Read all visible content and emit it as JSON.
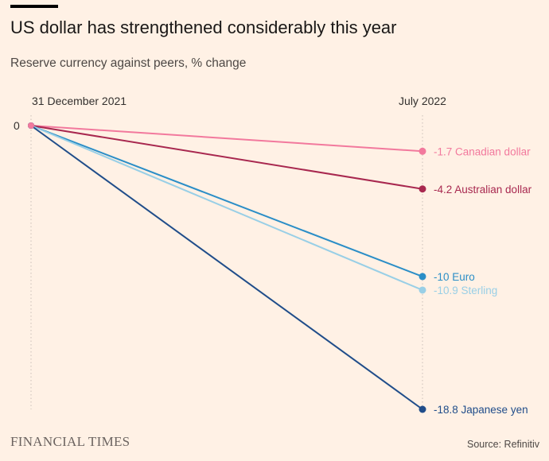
{
  "header": {
    "title": "US dollar has strengthened considerably this year",
    "subtitle": "Reserve currency against peers, % change"
  },
  "footer": {
    "brand": "FINANCIAL TIMES",
    "source": "Source: Refinitiv"
  },
  "chart_data": {
    "type": "line",
    "x": [
      "31 December 2021",
      "July 2022"
    ],
    "y_tick_labels": [
      "0"
    ],
    "ylim": [
      -18.8,
      0
    ],
    "grid": false,
    "series": [
      {
        "name": "Canadian dollar",
        "values": [
          0,
          -1.7
        ],
        "value_label": "-1.7",
        "color": "#f2799d"
      },
      {
        "name": "Australian dollar",
        "values": [
          0,
          -4.2
        ],
        "value_label": "-4.2",
        "color": "#a8284f"
      },
      {
        "name": "Euro",
        "values": [
          0,
          -10
        ],
        "value_label": "-10",
        "color": "#2b8ec7"
      },
      {
        "name": "Sterling",
        "values": [
          0,
          -10.9
        ],
        "value_label": "-10.9",
        "color": "#99cfe6"
      },
      {
        "name": "Japanese yen",
        "values": [
          0,
          -18.8
        ],
        "value_label": "-18.8",
        "color": "#204d8a"
      }
    ]
  }
}
